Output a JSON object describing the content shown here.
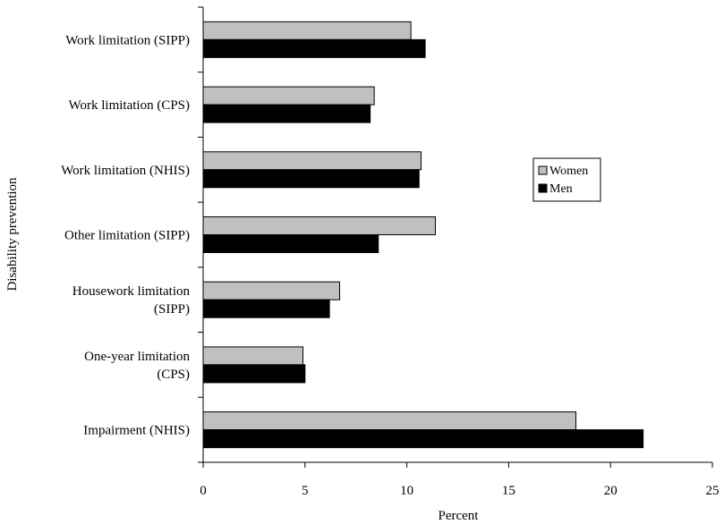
{
  "chart_data": {
    "type": "bar",
    "orientation": "horizontal",
    "categories": [
      [
        "Work limitation (SIPP)"
      ],
      [
        "Work limitation (CPS)"
      ],
      [
        "Work limitation (NHIS)"
      ],
      [
        "Other limitation (SIPP)"
      ],
      [
        "Housework limitation",
        "(SIPP)"
      ],
      [
        "One-year limitation",
        "(CPS)"
      ],
      [
        "Impairment (NHIS)"
      ]
    ],
    "series": [
      {
        "name": "Women",
        "color": "#c0c0c0",
        "values": [
          10.2,
          8.4,
          10.7,
          11.4,
          6.7,
          4.9,
          18.3
        ]
      },
      {
        "name": "Men",
        "color": "#000000",
        "values": [
          10.9,
          8.2,
          10.6,
          8.6,
          6.2,
          5.0,
          21.6
        ]
      }
    ],
    "xlabel": "Percent",
    "ylabel": "Disability prevention",
    "xlim": [
      0,
      25
    ],
    "xticks": [
      0,
      5,
      10,
      15,
      20,
      25
    ],
    "grid": false,
    "legend_position": "right"
  }
}
